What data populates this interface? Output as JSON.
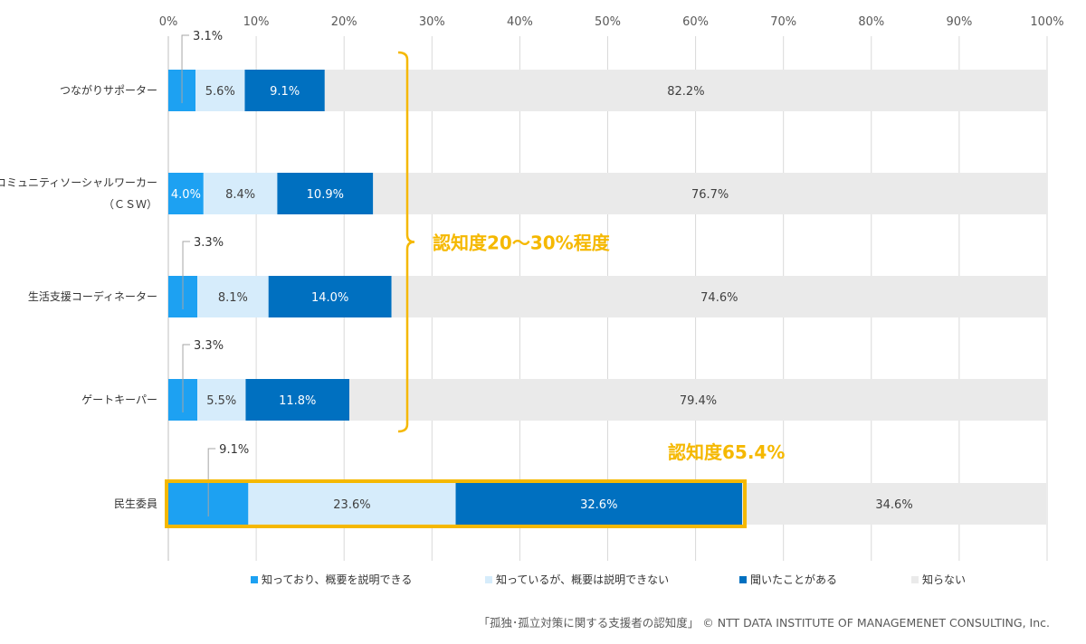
{
  "chart_data": {
    "type": "bar",
    "orientation": "horizontal",
    "stacked": true,
    "x_axis": {
      "min": 0,
      "max": 100,
      "ticks": [
        "0%",
        "10%",
        "20%",
        "30%",
        "40%",
        "50%",
        "60%",
        "70%",
        "80%",
        "90%",
        "100%"
      ]
    },
    "categories": [
      [
        "つながりサポーター"
      ],
      [
        "コミュニティソーシャルワーカー",
        "（ＣＳＷ）"
      ],
      [
        "生活支援コーディネーター"
      ],
      [
        "ゲートキーパー"
      ],
      [
        "民生委員"
      ]
    ],
    "series": [
      {
        "name": "知っており、概要を説明できる",
        "color": "#1DA1F2",
        "values": [
          3.1,
          4.0,
          3.3,
          3.3,
          9.1
        ],
        "labels": [
          "3.1%",
          "4.0%",
          "3.3%",
          "3.3%",
          "9.1%"
        ],
        "label_style": [
          "callout",
          "inside",
          "callout",
          "callout",
          "callout"
        ]
      },
      {
        "name": "知っているが、概要は説明できない",
        "color": "#D6ECFB",
        "values": [
          5.6,
          8.4,
          8.1,
          5.5,
          23.6
        ],
        "labels": [
          "5.6%",
          "8.4%",
          "8.1%",
          "5.5%",
          "23.6%"
        ]
      },
      {
        "name": "聞いたことがある",
        "color": "#0070C0",
        "values": [
          9.1,
          10.9,
          14.0,
          11.8,
          32.6
        ],
        "labels": [
          "9.1%",
          "10.9%",
          "14.0%",
          "11.8%",
          "32.6%"
        ]
      },
      {
        "name": "知らない",
        "color": "#EAEAEA",
        "values": [
          82.2,
          76.7,
          74.6,
          79.4,
          34.6
        ],
        "labels": [
          "82.2%",
          "76.7%",
          "74.6%",
          "79.4%",
          "34.6%"
        ]
      }
    ],
    "legend_position": "bottom",
    "grid": true,
    "annotations": [
      {
        "text": "認知度20～30%程度",
        "style": "bracket",
        "span_categories": [
          0,
          3
        ]
      },
      {
        "text": "認知度65.4%",
        "style": "highlight-box",
        "category": 4,
        "value_end": 65.4
      }
    ],
    "source_note": "「孤独･孤立対策に関する支援者の認知度」 © NTT DATA INSTITUTE OF MANAGEMENET CONSULTING, Inc.",
    "highlight_color": "#F5B800",
    "label_color_dark": "#ffffff",
    "label_color_light": "#404040"
  }
}
